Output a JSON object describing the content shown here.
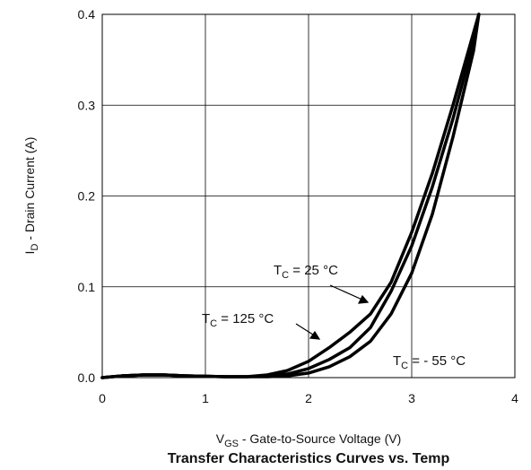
{
  "chart_data": {
    "type": "line",
    "title": "Transfer Characteristics Curves vs. Temp",
    "xlabel": {
      "main": "V",
      "sub": "GS",
      "rest": " - Gate-to-Source Voltage (V)"
    },
    "ylabel": {
      "main": "I",
      "sub": "D",
      "rest": " - Drain Current (A)"
    },
    "xlim": [
      0,
      4
    ],
    "ylim": [
      0,
      0.4
    ],
    "x_ticks": [
      "0",
      "1",
      "2",
      "3",
      "4"
    ],
    "y_ticks": [
      "0.0",
      "0.1",
      "0.2",
      "0.3",
      "0.4"
    ],
    "grid": true,
    "series": [
      {
        "label": {
          "main": "T",
          "sub": "C",
          "rest": " = 125 °C"
        },
        "x": [
          0,
          0.2,
          0.4,
          0.6,
          0.8,
          1.0,
          1.2,
          1.4,
          1.6,
          1.8,
          2.0,
          2.2,
          2.4,
          2.6,
          2.8,
          3.0,
          3.2,
          3.4,
          3.6,
          3.65
        ],
        "y": [
          0,
          0.002,
          0.003,
          0.003,
          0.002,
          0.0015,
          0.001,
          0.001,
          0.003,
          0.008,
          0.018,
          0.033,
          0.05,
          0.07,
          0.105,
          0.16,
          0.225,
          0.3,
          0.38,
          0.4
        ]
      },
      {
        "label": {
          "main": "T",
          "sub": "C",
          "rest": " = 25 °C"
        },
        "x": [
          0,
          0.2,
          0.4,
          0.6,
          0.8,
          1.0,
          1.2,
          1.4,
          1.6,
          1.8,
          2.0,
          2.2,
          2.4,
          2.6,
          2.8,
          3.0,
          3.2,
          3.4,
          3.6,
          3.65
        ],
        "y": [
          0,
          0.002,
          0.003,
          0.003,
          0.002,
          0.0015,
          0.001,
          0.001,
          0.002,
          0.004,
          0.01,
          0.02,
          0.033,
          0.055,
          0.095,
          0.145,
          0.21,
          0.285,
          0.37,
          0.4
        ]
      },
      {
        "label": {
          "main": "T",
          "sub": "C",
          "rest": " = - 55 °C"
        },
        "x": [
          0,
          0.2,
          0.4,
          0.6,
          0.8,
          1.0,
          1.2,
          1.4,
          1.6,
          1.8,
          2.0,
          2.2,
          2.4,
          2.6,
          2.8,
          3.0,
          3.2,
          3.4,
          3.6,
          3.65
        ],
        "y": [
          0,
          0.002,
          0.003,
          0.003,
          0.002,
          0.0015,
          0.001,
          0.001,
          0.001,
          0.002,
          0.005,
          0.012,
          0.023,
          0.04,
          0.07,
          0.115,
          0.18,
          0.265,
          0.36,
          0.4
        ]
      }
    ],
    "color": "#000000"
  }
}
